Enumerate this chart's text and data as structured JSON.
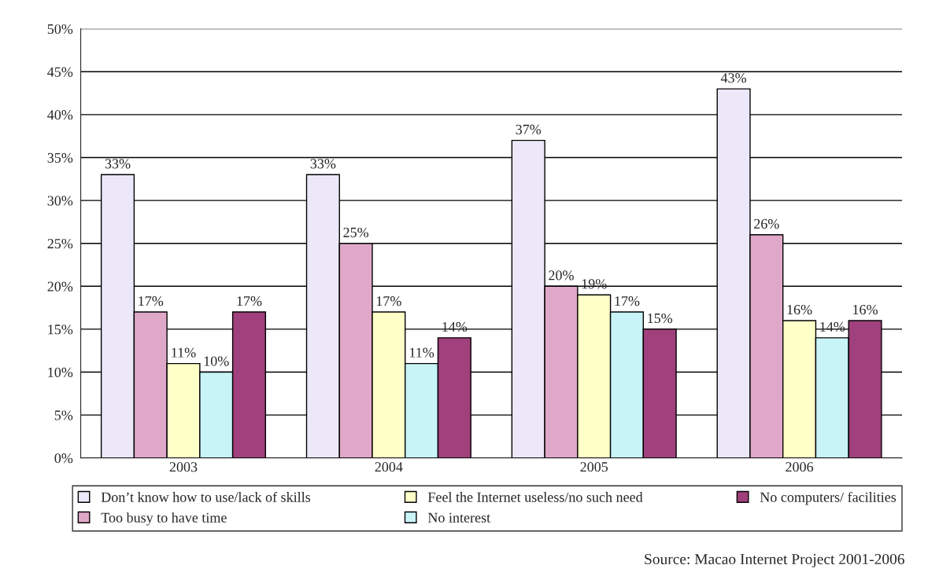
{
  "chart_data": {
    "type": "bar",
    "categories": [
      "2003",
      "2004",
      "2005",
      "2006"
    ],
    "series": [
      {
        "name": "Don’t know how to use/lack of skills",
        "color": "#ece8fa",
        "values": [
          33,
          33,
          37,
          43
        ],
        "value_labels": [
          "33%",
          "33%",
          "37%",
          "43%"
        ]
      },
      {
        "name": "Too busy to have time",
        "color": "#e0a8c8",
        "values": [
          17,
          25,
          20,
          26
        ],
        "value_labels": [
          "17%",
          "25%",
          "20%",
          "26%"
        ]
      },
      {
        "name": "Feel the Internet useless/no such need",
        "color": "#ffffc8",
        "values": [
          11,
          17,
          19,
          16
        ],
        "value_labels": [
          "11%",
          "17%",
          "19%",
          "16%"
        ]
      },
      {
        "name": "No interest",
        "color": "#c8f4f8",
        "values": [
          10,
          11,
          17,
          14
        ],
        "value_labels": [
          "10%",
          "11%",
          "17%",
          "14%"
        ]
      },
      {
        "name": "No computers/ facilities",
        "color": "#a0407c",
        "values": [
          17,
          14,
          15,
          16
        ],
        "value_labels": [
          "17%",
          "14%",
          "15%",
          "16%"
        ]
      }
    ],
    "ylim": [
      0,
      50
    ],
    "yticks": [
      {
        "value": 0,
        "label": "0%"
      },
      {
        "value": 5,
        "label": "5%"
      },
      {
        "value": 10,
        "label": "10%"
      },
      {
        "value": 15,
        "label": "15%"
      },
      {
        "value": 20,
        "label": "20%"
      },
      {
        "value": 25,
        "label": "25%"
      },
      {
        "value": 30,
        "label": "30%"
      },
      {
        "value": 35,
        "label": "35%"
      },
      {
        "value": 40,
        "label": "40%"
      },
      {
        "value": 45,
        "label": "45%"
      },
      {
        "value": 50,
        "label": "50%"
      }
    ],
    "grid": "y",
    "legend": "bottom",
    "annotations": [
      "Source: Macao Internet Project 2001-2006"
    ]
  }
}
